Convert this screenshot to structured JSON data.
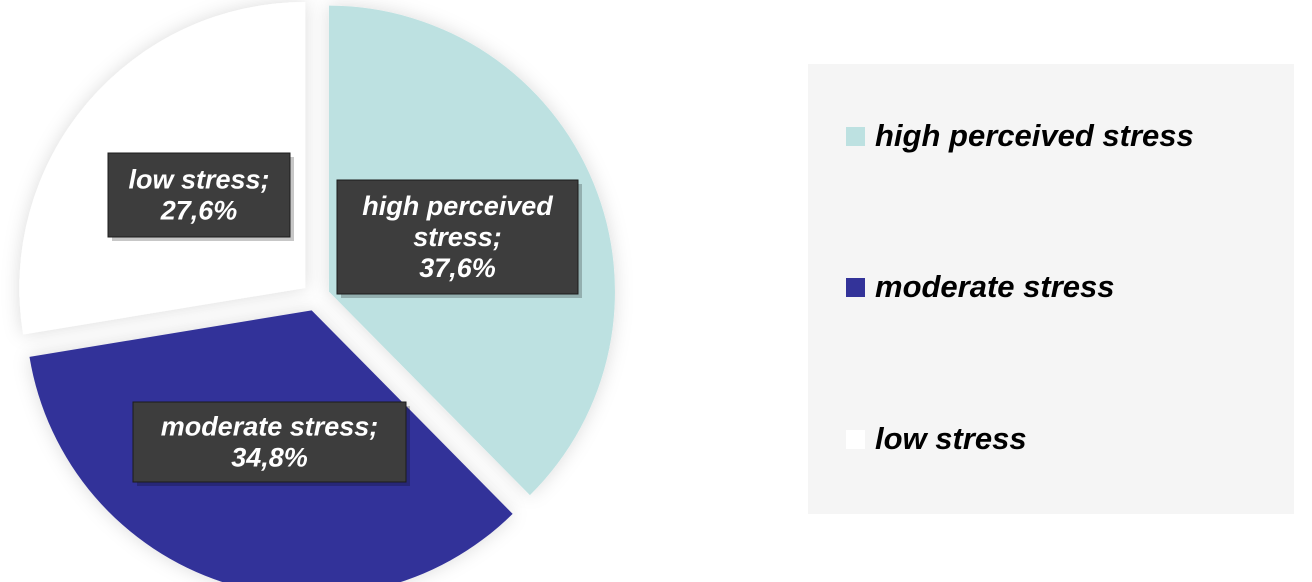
{
  "chart_data": {
    "type": "pie",
    "categories": [
      "high perceived stress",
      "moderate stress",
      "low stress"
    ],
    "values": [
      37.6,
      34.8,
      27.6
    ],
    "unit": "%",
    "colors": [
      "#bde1e1",
      "#333399",
      "#ffffff"
    ],
    "data_labels": [
      [
        "high perceived",
        "stress;",
        "37,6%"
      ],
      [
        "moderate stress;",
        "34,8%"
      ],
      [
        "low stress;",
        "27,6%"
      ]
    ],
    "exploded": true,
    "legend": {
      "position": "right",
      "entries": [
        "high perceived stress",
        "moderate stress",
        "low stress"
      ]
    }
  }
}
